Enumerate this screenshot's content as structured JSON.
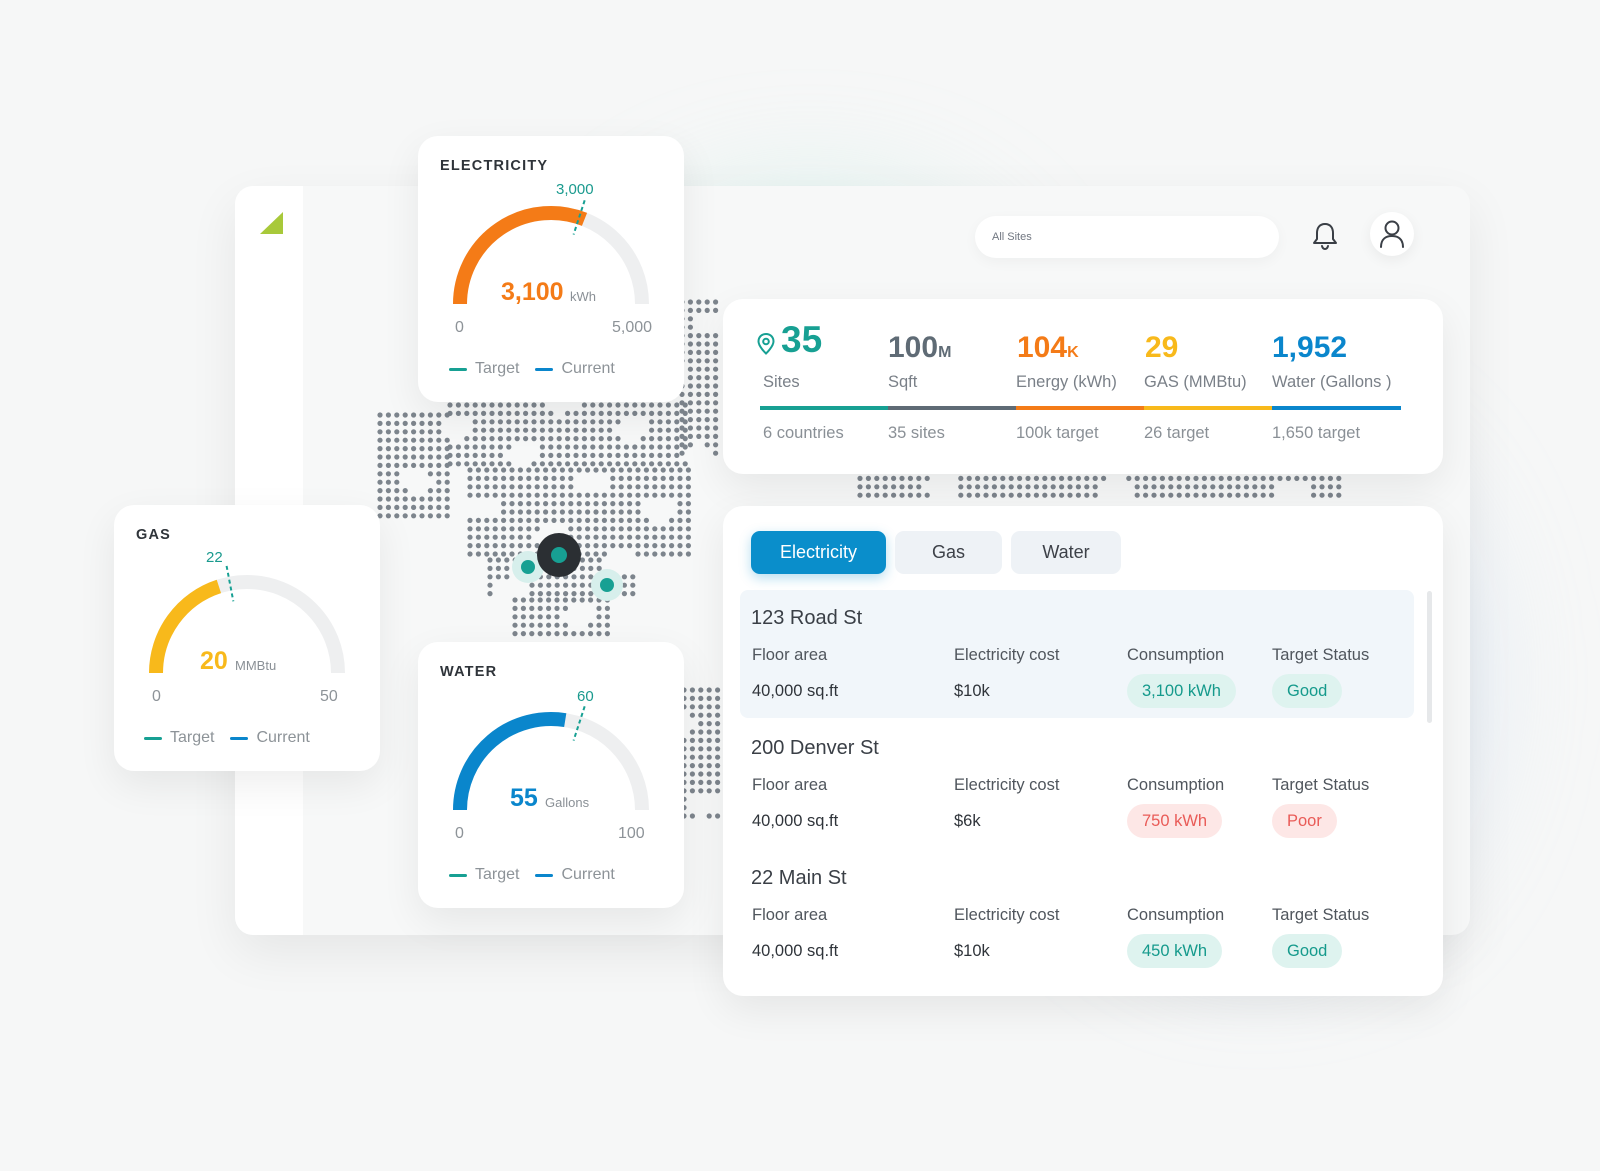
{
  "header": {
    "search_placeholder": "All Sites",
    "icons": {
      "bell": "bell-icon",
      "user": "user-icon",
      "logo": "leaf-logo-icon"
    }
  },
  "colors": {
    "teal": "#17a093",
    "orange": "#f47b17",
    "yellow": "#f8b91b",
    "blue": "#0a86cc",
    "slate": "#5f6b75",
    "good": "#159a8c",
    "poor": "#e95b57"
  },
  "gauges": {
    "electricity": {
      "title": "ELECTRICITY",
      "target_label": "3,000",
      "target_value": 3000,
      "value": "3,100",
      "current_value": 3100,
      "unit": "kWh",
      "min": "0",
      "max": "5,000",
      "max_value": 5000,
      "color": "#f47b17",
      "legend_target": "Target",
      "legend_current": "Current"
    },
    "gas": {
      "title": "GAS",
      "target_label": "22",
      "target_value": 22,
      "value": "20",
      "current_value": 20,
      "unit": "MMBtu",
      "min": "0",
      "max": "50",
      "max_value": 50,
      "color": "#f8b91b",
      "legend_target": "Target",
      "legend_current": "Current"
    },
    "water": {
      "title": "WATER",
      "target_label": "60",
      "target_value": 60,
      "value": "55",
      "current_value": 55,
      "unit": "Gallons",
      "min": "0",
      "max": "100",
      "max_value": 100,
      "color": "#0a86cc",
      "legend_target": "Target",
      "legend_current": "Current"
    }
  },
  "stats": {
    "sites": {
      "value": "35",
      "label": "Sites",
      "sub": "6 countries",
      "icon": "location-pin-icon"
    },
    "sqft": {
      "value": "100",
      "suffix": "M",
      "label": "Sqft",
      "sub": "35 sites"
    },
    "energy": {
      "value": "104",
      "suffix": "K",
      "label": "Energy (kWh)",
      "sub": "100k target"
    },
    "gas": {
      "value": "29",
      "label": "GAS (MMBtu)",
      "sub": "26 target"
    },
    "water": {
      "value": "1,952",
      "label": "Water (Gallons )",
      "sub": "1,650 target"
    }
  },
  "tabs": [
    {
      "label": "Electricity",
      "active": true
    },
    {
      "label": "Gas",
      "active": false
    },
    {
      "label": "Water",
      "active": false
    }
  ],
  "columns": {
    "floor_area": "Floor area",
    "cost": "Electricity cost",
    "consumption": "Consumption",
    "status": "Target Status"
  },
  "sites": [
    {
      "name": "123 Road St",
      "floor_area": "40,000 sq.ft",
      "cost": "$10k",
      "consumption": "3,100 kWh",
      "status": "Good"
    },
    {
      "name": "200 Denver St",
      "floor_area": "40,000 sq.ft",
      "cost": "$6k",
      "consumption": "750 kWh",
      "status": "Poor"
    },
    {
      "name": "22 Main St",
      "floor_area": "40,000 sq.ft",
      "cost": "$10k",
      "consumption": "450 kWh",
      "status": "Good"
    }
  ]
}
